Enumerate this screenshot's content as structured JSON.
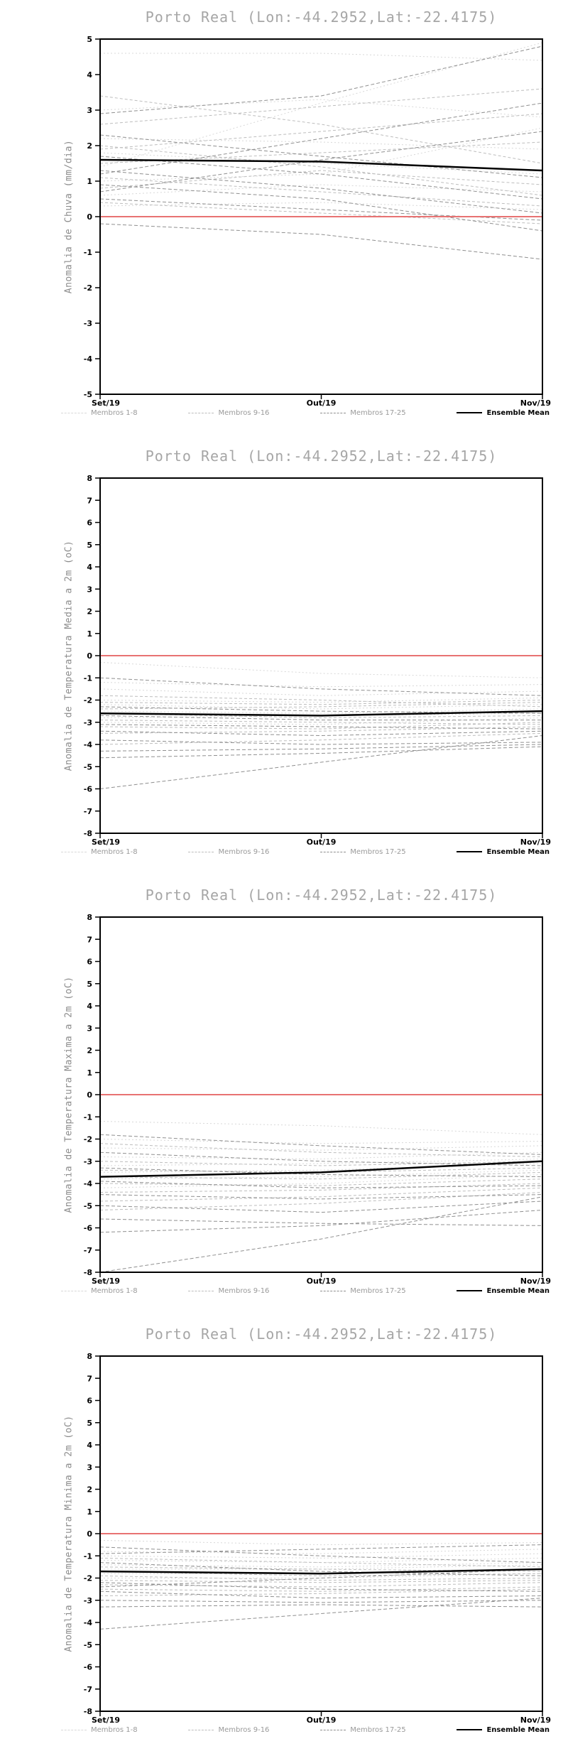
{
  "colors": {
    "group_1_8": "#d8d8d8",
    "group_9_16": "#bdbdbd",
    "group_17_25": "#8f8f8f",
    "ensemble_mean": "#000000",
    "reference_line": "#e87272",
    "title": "#a6a6a6",
    "axis": "#000000"
  },
  "legend": {
    "items": [
      {
        "label": "Membros 1-8"
      },
      {
        "label": "Membros 9-16"
      },
      {
        "label": "Membros 17-25"
      },
      {
        "label": "Ensemble Mean"
      }
    ]
  },
  "chart_data": [
    {
      "type": "line",
      "title": "Porto Real (Lon:-44.2952,Lat:-22.4175)",
      "ylabel": "Anomalia de Chuva (mm/dia)",
      "x": [
        "Set/19",
        "Out/19",
        "Nov/19"
      ],
      "ylim": [
        -5,
        5
      ],
      "ytick_step": 1,
      "reference_value": 0,
      "ensemble_mean": [
        1.6,
        1.55,
        1.3
      ],
      "groups": [
        {
          "range": "1-8",
          "members": [
            [
              4.6,
              4.6,
              4.4
            ],
            [
              3.0,
              3.3,
              2.8
            ],
            [
              2.2,
              2.1,
              1.9
            ],
            [
              1.8,
              1.5,
              1.2
            ],
            [
              1.0,
              1.2,
              2.5
            ],
            [
              0.6,
              0.9,
              0.7
            ],
            [
              0.3,
              0.4,
              0.2
            ],
            [
              1.4,
              3.2,
              4.9
            ]
          ]
        },
        {
          "range": "9-16",
          "members": [
            [
              3.4,
              2.6,
              1.5
            ],
            [
              2.6,
              3.1,
              3.6
            ],
            [
              2.0,
              1.4,
              0.6
            ],
            [
              1.5,
              1.8,
              2.1
            ],
            [
              1.1,
              0.7,
              0.3
            ],
            [
              0.8,
              1.3,
              0.9
            ],
            [
              0.4,
              0.1,
              -0.2
            ],
            [
              1.9,
              2.4,
              2.9
            ]
          ]
        },
        {
          "range": "17-25",
          "members": [
            [
              2.9,
              3.4,
              4.8
            ],
            [
              2.3,
              1.7,
              1.1
            ],
            [
              1.7,
              1.2,
              0.5
            ],
            [
              1.3,
              0.8,
              0.1
            ],
            [
              0.9,
              0.5,
              -0.4
            ],
            [
              0.5,
              0.2,
              -0.1
            ],
            [
              -0.2,
              -0.5,
              -1.2
            ],
            [
              1.2,
              2.2,
              3.2
            ],
            [
              0.7,
              1.6,
              2.4
            ]
          ]
        }
      ]
    },
    {
      "type": "line",
      "title": "Porto Real (Lon:-44.2952,Lat:-22.4175)",
      "ylabel": "Anomalia de Temperatura Media a 2m (oC)",
      "x": [
        "Set/19",
        "Out/19",
        "Nov/19"
      ],
      "ylim": [
        -8,
        8
      ],
      "ytick_step": 1,
      "reference_value": 0,
      "ensemble_mean": [
        -2.6,
        -2.7,
        -2.5
      ],
      "groups": [
        {
          "range": "1-8",
          "members": [
            [
              -0.3,
              -0.8,
              -1.0
            ],
            [
              -1.2,
              -1.4,
              -1.3
            ],
            [
              -1.5,
              -1.8,
              -1.6
            ],
            [
              -2.0,
              -2.1,
              -1.9
            ],
            [
              -2.2,
              -2.4,
              -2.2
            ],
            [
              -2.5,
              -2.6,
              -2.4
            ],
            [
              -2.8,
              -2.7,
              -2.6
            ],
            [
              -3.0,
              -3.1,
              -2.8
            ]
          ]
        },
        {
          "range": "9-16",
          "members": [
            [
              -1.8,
              -2.0,
              -2.3
            ],
            [
              -2.1,
              -2.2,
              -2.0
            ],
            [
              -2.4,
              -2.3,
              -2.1
            ],
            [
              -2.6,
              -2.8,
              -2.7
            ],
            [
              -2.9,
              -3.0,
              -3.1
            ],
            [
              -3.2,
              -3.3,
              -3.0
            ],
            [
              -3.5,
              -3.4,
              -3.2
            ],
            [
              -4.0,
              -3.8,
              -3.5
            ]
          ]
        },
        {
          "range": "17-25",
          "members": [
            [
              -1.0,
              -1.5,
              -1.8
            ],
            [
              -2.3,
              -2.5,
              -2.6
            ],
            [
              -2.7,
              -2.9,
              -2.9
            ],
            [
              -3.1,
              -3.2,
              -3.3
            ],
            [
              -3.4,
              -3.6,
              -3.4
            ],
            [
              -3.8,
              -4.0,
              -3.9
            ],
            [
              -4.3,
              -4.2,
              -4.0
            ],
            [
              -4.6,
              -4.4,
              -4.1
            ],
            [
              -6.0,
              -4.8,
              -3.6
            ]
          ]
        }
      ]
    },
    {
      "type": "line",
      "title": "Porto Real (Lon:-44.2952,Lat:-22.4175)",
      "ylabel": "Anomalia de Temperatura Maxima a 2m (oC)",
      "x": [
        "Set/19",
        "Out/19",
        "Nov/19"
      ],
      "ylim": [
        -8,
        8
      ],
      "ytick_step": 1,
      "reference_value": 0,
      "ensemble_mean": [
        -3.7,
        -3.5,
        -3.0
      ],
      "groups": [
        {
          "range": "1-8",
          "members": [
            [
              -1.2,
              -1.4,
              -1.8
            ],
            [
              -2.0,
              -2.2,
              -2.1
            ],
            [
              -2.4,
              -2.5,
              -2.3
            ],
            [
              -2.8,
              -2.9,
              -2.6
            ],
            [
              -3.2,
              -3.1,
              -2.9
            ],
            [
              -3.5,
              -3.4,
              -3.1
            ],
            [
              -3.8,
              -3.7,
              -3.4
            ],
            [
              -4.2,
              -4.0,
              -3.6
            ]
          ]
        },
        {
          "range": "9-16",
          "members": [
            [
              -2.2,
              -2.6,
              -2.8
            ],
            [
              -3.0,
              -3.2,
              -3.0
            ],
            [
              -3.4,
              -3.5,
              -3.3
            ],
            [
              -3.7,
              -3.8,
              -3.5
            ],
            [
              -4.0,
              -4.1,
              -3.8
            ],
            [
              -4.4,
              -4.3,
              -4.0
            ],
            [
              -4.8,
              -4.6,
              -4.2
            ],
            [
              -5.2,
              -4.9,
              -4.4
            ]
          ]
        },
        {
          "range": "17-25",
          "members": [
            [
              -1.8,
              -2.3,
              -2.7
            ],
            [
              -2.6,
              -3.0,
              -3.2
            ],
            [
              -3.3,
              -3.6,
              -3.7
            ],
            [
              -3.9,
              -4.2,
              -4.1
            ],
            [
              -4.5,
              -4.7,
              -4.5
            ],
            [
              -5.0,
              -5.3,
              -4.8
            ],
            [
              -5.6,
              -5.8,
              -5.9
            ],
            [
              -6.2,
              -5.9,
              -5.2
            ],
            [
              -8.0,
              -6.5,
              -4.6
            ]
          ]
        }
      ]
    },
    {
      "type": "line",
      "title": "Porto Real (Lon:-44.2952,Lat:-22.4175)",
      "ylabel": "Anomalia de Temperatura Minima a 2m (oC)",
      "x": [
        "Set/19",
        "Out/19",
        "Nov/19"
      ],
      "ylim": [
        -8,
        8
      ],
      "ytick_step": 1,
      "reference_value": 0,
      "ensemble_mean": [
        -1.7,
        -1.8,
        -1.6
      ],
      "groups": [
        {
          "range": "1-8",
          "members": [
            [
              -0.3,
              -0.5,
              -0.4
            ],
            [
              -0.8,
              -0.9,
              -0.7
            ],
            [
              -1.0,
              -1.1,
              -0.9
            ],
            [
              -1.2,
              -1.3,
              -1.1
            ],
            [
              -1.4,
              -1.5,
              -1.3
            ],
            [
              -1.6,
              -1.6,
              -1.4
            ],
            [
              -1.8,
              -1.8,
              -1.6
            ],
            [
              -2.0,
              -2.0,
              -1.8
            ]
          ]
        },
        {
          "range": "9-16",
          "members": [
            [
              -1.1,
              -1.3,
              -1.5
            ],
            [
              -1.5,
              -1.6,
              -1.7
            ],
            [
              -1.7,
              -1.9,
              -1.8
            ],
            [
              -1.9,
              -2.1,
              -2.0
            ],
            [
              -2.1,
              -2.2,
              -2.1
            ],
            [
              -2.3,
              -2.4,
              -2.2
            ],
            [
              -2.5,
              -2.6,
              -2.4
            ],
            [
              -2.8,
              -2.7,
              -2.5
            ]
          ]
        },
        {
          "range": "17-25",
          "members": [
            [
              -0.6,
              -1.0,
              -1.3
            ],
            [
              -1.3,
              -1.7,
              -1.9
            ],
            [
              -2.2,
              -2.5,
              -2.6
            ],
            [
              -2.6,
              -2.9,
              -2.8
            ],
            [
              -3.0,
              -3.1,
              -3.0
            ],
            [
              -3.3,
              -3.2,
              -3.3
            ],
            [
              -4.3,
              -3.6,
              -2.9
            ],
            [
              -2.4,
              -2.0,
              -1.6
            ],
            [
              -0.9,
              -0.7,
              -0.5
            ]
          ]
        }
      ]
    }
  ]
}
